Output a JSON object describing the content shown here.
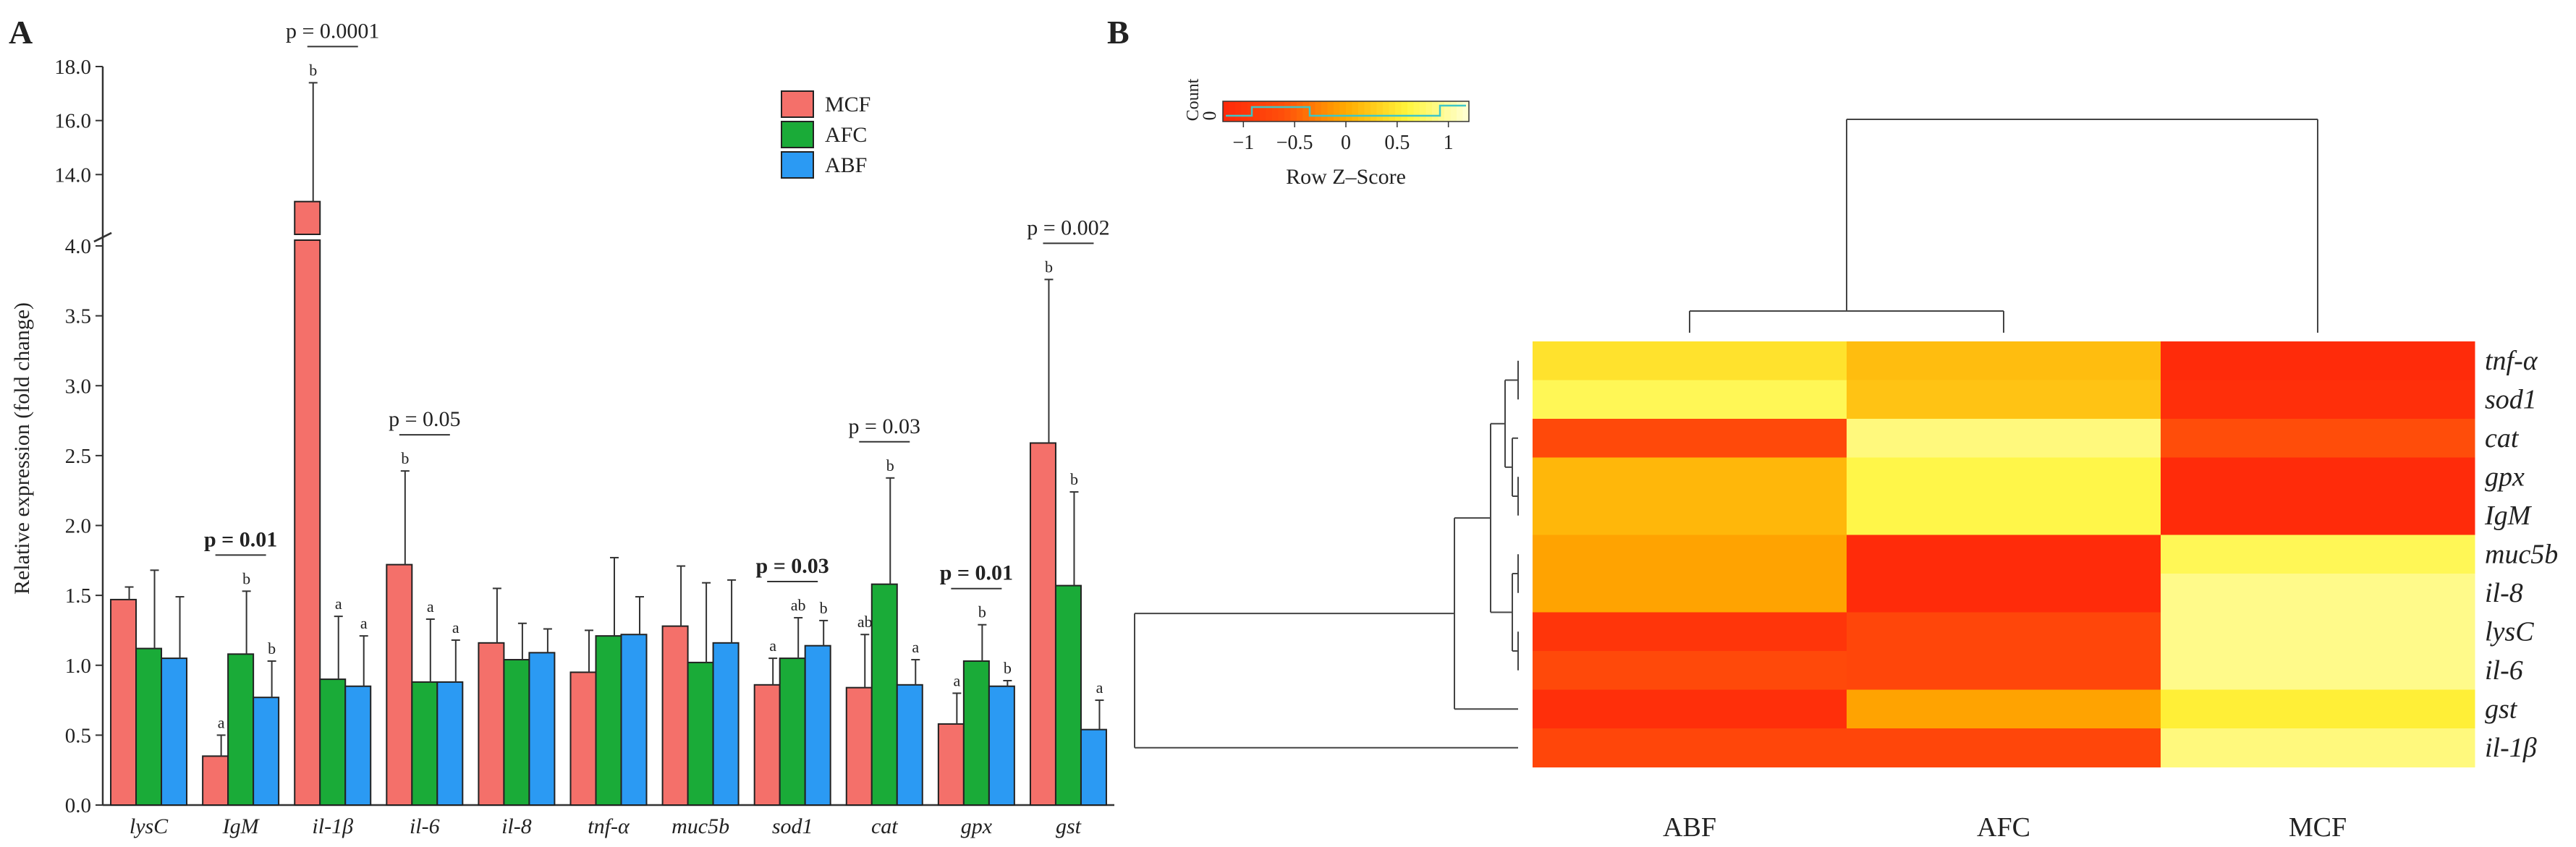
{
  "chart_data": [
    {
      "panel": "A",
      "type": "bar",
      "ylabel": "Relative expression (fold change)",
      "ylim_lower": [
        0,
        4
      ],
      "ylim_upper": [
        12,
        18
      ],
      "yticks_lower": [
        "0.0",
        "0.5",
        "1.0",
        "1.5",
        "2.0",
        "2.5",
        "3.0",
        "3.5",
        "4.0"
      ],
      "yticks_upper": [
        "14.0",
        "16.0",
        "18.0"
      ],
      "categories": [
        "lysC",
        "IgM",
        "il-1β",
        "il-6",
        "il-8",
        "tnf-α",
        "muc5b",
        "sod1",
        "cat",
        "gpx",
        "gst"
      ],
      "series": [
        {
          "name": "MCF",
          "color": "#f4706a",
          "values": [
            1.47,
            0.35,
            13.0,
            1.72,
            1.16,
            0.95,
            1.28,
            0.86,
            0.84,
            0.58,
            2.59
          ],
          "errors": [
            0.09,
            0.15,
            4.4,
            0.67,
            0.39,
            0.3,
            0.43,
            0.19,
            0.38,
            0.22,
            1.17
          ]
        },
        {
          "name": "AFC",
          "color": "#1aab38",
          "values": [
            1.12,
            1.08,
            0.9,
            0.88,
            1.04,
            1.21,
            1.02,
            1.05,
            1.58,
            1.03,
            1.57
          ],
          "errors": [
            0.56,
            0.45,
            0.45,
            0.45,
            0.26,
            0.56,
            0.57,
            0.29,
            0.76,
            0.26,
            0.67
          ]
        },
        {
          "name": "ABF",
          "color": "#2b9af3",
          "values": [
            1.05,
            0.77,
            0.85,
            0.88,
            1.09,
            1.22,
            1.16,
            1.14,
            0.86,
            0.85,
            0.54
          ],
          "errors": [
            0.44,
            0.26,
            0.36,
            0.3,
            0.17,
            0.27,
            0.45,
            0.18,
            0.18,
            0.04,
            0.21
          ]
        }
      ],
      "sig_letters": [
        [
          "",
          "",
          ""
        ],
        [
          "a",
          "b",
          "b"
        ],
        [
          "b",
          "a",
          "a"
        ],
        [
          "b",
          "a",
          "a"
        ],
        [
          "",
          "",
          ""
        ],
        [
          "",
          "",
          ""
        ],
        [
          "",
          "",
          ""
        ],
        [
          "a",
          "ab",
          "b"
        ],
        [
          "ab",
          "b",
          "a"
        ],
        [
          "a",
          "b",
          "b"
        ],
        [
          "b",
          "b",
          "a"
        ]
      ],
      "pvalues": [
        {
          "category": "IgM",
          "label": "p = 0.01",
          "bold": true
        },
        {
          "category": "il-1β",
          "label": "p = 0.0001",
          "bold": false
        },
        {
          "category": "il-6",
          "label": "p = 0.05",
          "bold": false
        },
        {
          "category": "sod1",
          "label": "p = 0.03",
          "bold": true
        },
        {
          "category": "cat",
          "label": "p = 0.03",
          "bold": false
        },
        {
          "category": "gpx",
          "label": "p = 0.01",
          "bold": true
        },
        {
          "category": "gst",
          "label": "p = 0.002",
          "bold": false
        }
      ]
    },
    {
      "panel": "B",
      "type": "heatmap",
      "columns": [
        "ABF",
        "AFC",
        "MCF"
      ],
      "rows": [
        "tnf-α",
        "sod1",
        "cat",
        "gpx",
        "IgM",
        "muc5b",
        "il-8",
        "lysC",
        "il-6",
        "gst",
        "il-1β"
      ],
      "z": [
        [
          0.45,
          0.15,
          -1.15
        ],
        [
          0.7,
          0.2,
          -1.1
        ],
        [
          -0.7,
          0.85,
          -0.65
        ],
        [
          0.1,
          0.65,
          -1.15
        ],
        [
          0.1,
          0.65,
          -1.15
        ],
        [
          -0.05,
          -1.15,
          0.7
        ],
        [
          -0.05,
          -1.15,
          0.9
        ],
        [
          -1.0,
          -0.75,
          0.9
        ],
        [
          -0.7,
          -0.75,
          0.9
        ],
        [
          -1.1,
          -0.05,
          0.55
        ],
        [
          -0.75,
          -0.75,
          0.85
        ]
      ],
      "color_key": {
        "title": "Row Z–Score",
        "count_label": "Count",
        "count_tick": "0",
        "ticks": [
          "−1",
          "−0.5",
          "0",
          "0.5",
          "1"
        ],
        "range": [
          -1.2,
          1.2
        ]
      },
      "row_dendrogram": [
        "il-1β",
        [
          "gst",
          [
            [
              [
                "tnf-α",
                "sod1"
              ],
              [
                "cat",
                [
                  "gpx",
                  "IgM"
                ]
              ]
            ],
            [
              [
                "muc5b",
                "il-8"
              ],
              [
                "lysC",
                "il-6"
              ]
            ]
          ]
        ]
      ],
      "col_dendrogram": [
        [
          "ABF",
          "AFC"
        ],
        "MCF"
      ]
    }
  ],
  "panel_labels": [
    "A",
    "B"
  ],
  "legend_entries": [
    "MCF",
    "AFC",
    "ABF"
  ]
}
